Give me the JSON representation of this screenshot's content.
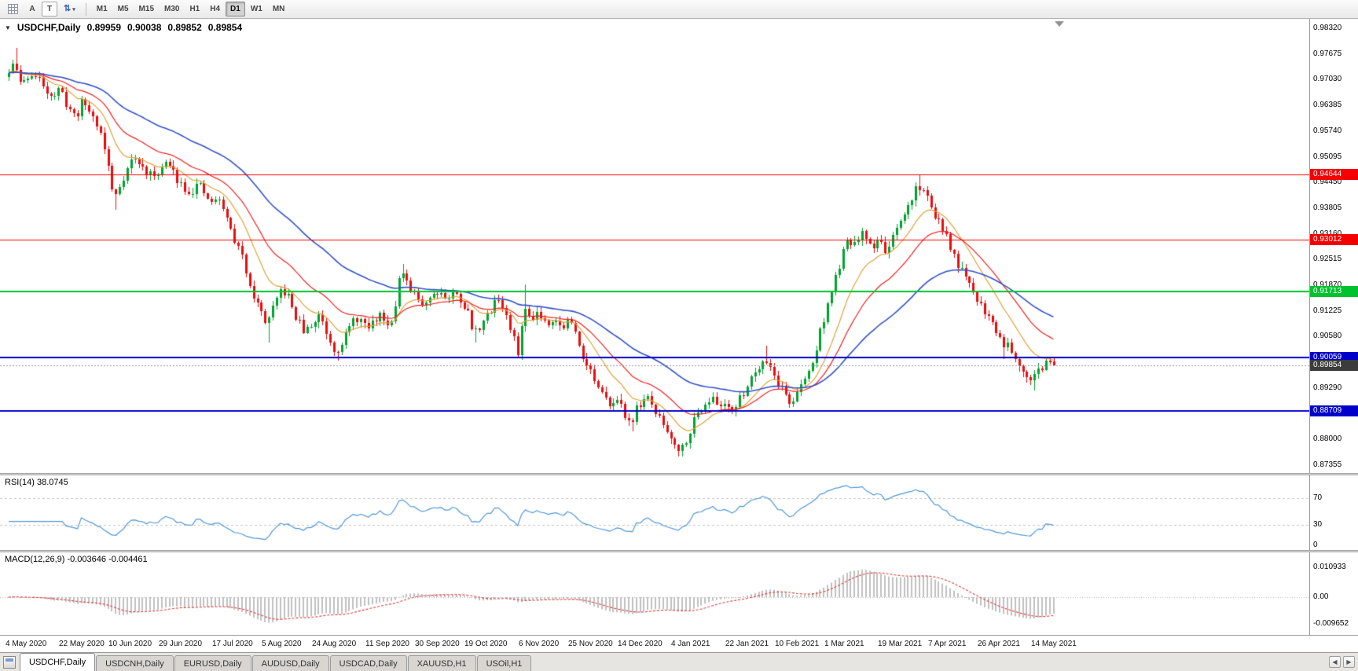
{
  "toolbar": {
    "tools": [
      {
        "name": "grid-tool"
      },
      {
        "name": "annotation-tool",
        "label": "A"
      },
      {
        "name": "text-tool",
        "label": "T"
      },
      {
        "name": "sort-arrows-tool"
      }
    ],
    "timeframes": [
      "M1",
      "M5",
      "M15",
      "M30",
      "H1",
      "H4",
      "D1",
      "W1",
      "MN"
    ],
    "active_timeframe": "D1"
  },
  "chart": {
    "title": "USDCHF,Daily",
    "open": "0.89959",
    "high": "0.90038",
    "low": "0.89852",
    "close": "0.89854",
    "price_axis_labels": [
      "0.98320",
      "0.97675",
      "0.97030",
      "0.96385",
      "0.95740",
      "0.95095",
      "0.94450",
      "0.93805",
      "0.93160",
      "0.92515",
      "0.91870",
      "0.91225",
      "0.90580",
      "0.89935",
      "0.89290",
      "0.88645",
      "0.88000",
      "0.87355"
    ],
    "levels": [
      {
        "price": 0.94644,
        "label": "0.94644",
        "color": "#f40000",
        "width": 1
      },
      {
        "price": 0.93012,
        "label": "0.93012",
        "color": "#f40000",
        "width": 1
      },
      {
        "price": 0.91713,
        "label": "0.91713",
        "color": "#00c22e",
        "width": 2
      },
      {
        "price": 0.90059,
        "label": "0.90059",
        "color": "#0100ca",
        "width": 2
      },
      {
        "price": 0.88709,
        "label": "0.88709",
        "color": "#0100ca",
        "width": 2
      }
    ],
    "current_price": {
      "price": 0.89854,
      "label": "0.89854",
      "badge_color": "#3c3c3c"
    }
  },
  "rsi_panel": {
    "label": "RSI(14) 38.0745",
    "period": 14,
    "current": 38.0745,
    "axis": [
      {
        "value": 70,
        "label": "70",
        "dashed": true
      },
      {
        "value": 30,
        "label": "30",
        "dashed": true
      },
      {
        "value": 0,
        "label": "0",
        "dashed": false
      }
    ]
  },
  "macd_panel": {
    "label": "MACD(12,26,9) -0.003646 -0.004461",
    "fast": 12,
    "slow": 26,
    "signal_period": 9,
    "current_main": -0.003646,
    "current_signal": -0.004461,
    "axis": [
      {
        "value": 0.010933,
        "label": "0.010933"
      },
      {
        "value": 0,
        "label": "0.00"
      },
      {
        "value": -0.009652,
        "label": "-0.009652"
      }
    ]
  },
  "tabs": {
    "items": [
      "USDCHF,Daily",
      "USDCNH,Daily",
      "EURUSD,Daily",
      "AUDUSD,Daily",
      "USDCAD,Daily",
      "XAUUSD,H1",
      "USOil,H1"
    ],
    "active": "USDCHF,Daily"
  },
  "colors": {
    "bull": "#00a32e",
    "bear": "#ea0c0c",
    "rsi_line": "#4f97d7",
    "rsi_level": "#c4c4c4",
    "macd_hist": "#c0c0c0",
    "macd_signal": "#e23a3a",
    "current_line": "#9a9a9a"
  },
  "chart_data": {
    "type": "candlestick",
    "symbol": "USDCHF",
    "period": "Daily",
    "price_axis": {
      "top": 0.9832,
      "bottom": 0.87355,
      "step": 0.00645
    },
    "days": 274,
    "close_waypoints": [
      [
        0,
        0.971
      ],
      [
        2,
        0.9742
      ],
      [
        4,
        0.9688
      ],
      [
        6,
        0.972
      ],
      [
        9,
        0.9698
      ],
      [
        12,
        0.9662
      ],
      [
        14,
        0.9676
      ],
      [
        16,
        0.9638
      ],
      [
        18,
        0.9608
      ],
      [
        20,
        0.9652
      ],
      [
        22,
        0.9618
      ],
      [
        24,
        0.9588
      ],
      [
        26,
        0.9518
      ],
      [
        28,
        0.9402
      ],
      [
        30,
        0.9448
      ],
      [
        33,
        0.9508
      ],
      [
        36,
        0.9478
      ],
      [
        38,
        0.9458
      ],
      [
        40,
        0.9478
      ],
      [
        42,
        0.9495
      ],
      [
        44,
        0.9462
      ],
      [
        46,
        0.944
      ],
      [
        48,
        0.942
      ],
      [
        50,
        0.9442
      ],
      [
        52,
        0.9408
      ],
      [
        54,
        0.9395
      ],
      [
        56,
        0.9402
      ],
      [
        58,
        0.934
      ],
      [
        60,
        0.9292
      ],
      [
        62,
        0.9248
      ],
      [
        64,
        0.9178
      ],
      [
        66,
        0.9128
      ],
      [
        68,
        0.9092
      ],
      [
        70,
        0.9132
      ],
      [
        72,
        0.918
      ],
      [
        74,
        0.9148
      ],
      [
        76,
        0.9098
      ],
      [
        78,
        0.9068
      ],
      [
        80,
        0.9088
      ],
      [
        82,
        0.9118
      ],
      [
        84,
        0.9058
      ],
      [
        86,
        0.9022
      ],
      [
        88,
        0.9052
      ],
      [
        90,
        0.9088
      ],
      [
        92,
        0.9108
      ],
      [
        94,
        0.9076
      ],
      [
        96,
        0.9096
      ],
      [
        98,
        0.9118
      ],
      [
        100,
        0.9082
      ],
      [
        102,
        0.9162
      ],
      [
        103,
        0.9226
      ],
      [
        105,
        0.9178
      ],
      [
        107,
        0.9158
      ],
      [
        109,
        0.9142
      ],
      [
        111,
        0.9162
      ],
      [
        113,
        0.9178
      ],
      [
        115,
        0.9152
      ],
      [
        117,
        0.9168
      ],
      [
        119,
        0.9148
      ],
      [
        121,
        0.9108
      ],
      [
        122,
        0.9062
      ],
      [
        124,
        0.9092
      ],
      [
        126,
        0.9112
      ],
      [
        128,
        0.9162
      ],
      [
        130,
        0.9128
      ],
      [
        132,
        0.9062
      ],
      [
        134,
        0.9012
      ],
      [
        135,
        0.9128
      ],
      [
        137,
        0.9108
      ],
      [
        139,
        0.9122
      ],
      [
        141,
        0.9092
      ],
      [
        143,
        0.9108
      ],
      [
        145,
        0.9078
      ],
      [
        147,
        0.9102
      ],
      [
        149,
        0.9058
      ],
      [
        151,
        0.9002
      ],
      [
        153,
        0.8962
      ],
      [
        155,
        0.8916
      ],
      [
        157,
        0.8892
      ],
      [
        159,
        0.8906
      ],
      [
        161,
        0.8872
      ],
      [
        163,
        0.8842
      ],
      [
        165,
        0.8882
      ],
      [
        167,
        0.8908
      ],
      [
        169,
        0.8878
      ],
      [
        171,
        0.8846
      ],
      [
        173,
        0.8815
      ],
      [
        175,
        0.879
      ],
      [
        176,
        0.8768
      ],
      [
        178,
        0.8812
      ],
      [
        180,
        0.8856
      ],
      [
        182,
        0.8886
      ],
      [
        184,
        0.8906
      ],
      [
        186,
        0.8882
      ],
      [
        188,
        0.8896
      ],
      [
        190,
        0.8872
      ],
      [
        192,
        0.8906
      ],
      [
        194,
        0.8948
      ],
      [
        196,
        0.8976
      ],
      [
        198,
        0.9008
      ],
      [
        200,
        0.8976
      ],
      [
        201,
        0.8952
      ],
      [
        203,
        0.8922
      ],
      [
        205,
        0.8888
      ],
      [
        207,
        0.8922
      ],
      [
        209,
        0.8958
      ],
      [
        211,
        0.9002
      ],
      [
        213,
        0.9088
      ],
      [
        214,
        0.9118
      ],
      [
        216,
        0.9182
      ],
      [
        218,
        0.9252
      ],
      [
        220,
        0.9298
      ],
      [
        222,
        0.9288
      ],
      [
        224,
        0.9318
      ],
      [
        226,
        0.9282
      ],
      [
        228,
        0.9302
      ],
      [
        230,
        0.9272
      ],
      [
        232,
        0.9308
      ],
      [
        234,
        0.9348
      ],
      [
        236,
        0.9392
      ],
      [
        238,
        0.944
      ],
      [
        240,
        0.9418
      ],
      [
        241,
        0.9398
      ],
      [
        243,
        0.9358
      ],
      [
        245,
        0.9318
      ],
      [
        247,
        0.9272
      ],
      [
        249,
        0.9232
      ],
      [
        251,
        0.9192
      ],
      [
        253,
        0.9162
      ],
      [
        254,
        0.9148
      ],
      [
        256,
        0.9118
      ],
      [
        258,
        0.9088
      ],
      [
        260,
        0.9046
      ],
      [
        262,
        0.9038
      ],
      [
        264,
        0.9
      ],
      [
        266,
        0.8972
      ],
      [
        268,
        0.8952
      ],
      [
        270,
        0.8976
      ],
      [
        272,
        0.8992
      ],
      [
        273,
        0.8986
      ]
    ],
    "wick_overrides": [
      {
        "i": 2,
        "h": 0.9782
      },
      {
        "i": 28,
        "l": 0.9376
      },
      {
        "i": 68,
        "l": 0.9044
      },
      {
        "i": 86,
        "l": 0.8998
      },
      {
        "i": 103,
        "h": 0.924
      },
      {
        "i": 122,
        "l": 0.9044
      },
      {
        "i": 135,
        "h": 0.919
      },
      {
        "i": 163,
        "l": 0.882
      },
      {
        "i": 176,
        "l": 0.8757
      },
      {
        "i": 198,
        "h": 0.9036
      },
      {
        "i": 238,
        "h": 0.94644
      },
      {
        "i": 260,
        "l": 0.9002
      },
      {
        "i": 268,
        "l": 0.8922
      }
    ],
    "last_candle": {
      "o": 0.89959,
      "h": 0.90038,
      "l": 0.89852,
      "c": 0.89854
    },
    "moving_averages": [
      {
        "name": "MA fast",
        "method": "ema",
        "period": 12,
        "color": "#e2a23b"
      },
      {
        "name": "MA mid",
        "method": "ema",
        "period": 24,
        "color": "#f22020"
      },
      {
        "name": "MA slow",
        "method": "ema",
        "period": 52,
        "color": "#3152c8"
      }
    ],
    "date_ticks": [
      [
        0,
        "4 May 2020"
      ],
      [
        14,
        "22 May 2020"
      ],
      [
        27,
        "10 Jun 2020"
      ],
      [
        40,
        "29 Jun 2020"
      ],
      [
        54,
        "17 Jul 2020"
      ],
      [
        67,
        "5 Aug 2020"
      ],
      [
        80,
        "24 Aug 2020"
      ],
      [
        94,
        "11 Sep 2020"
      ],
      [
        107,
        "30 Sep 2020"
      ],
      [
        120,
        "19 Oct 2020"
      ],
      [
        134,
        "6 Nov 2020"
      ],
      [
        147,
        "25 Nov 2020"
      ],
      [
        160,
        "14 Dec 2020"
      ],
      [
        174,
        "4 Jan 2021"
      ],
      [
        188,
        "22 Jan 2021"
      ],
      [
        201,
        "10 Feb 2021"
      ],
      [
        214,
        "1 Mar 2021"
      ],
      [
        228,
        "19 Mar 2021"
      ],
      [
        241,
        "7 Apr 2021"
      ],
      [
        254,
        "26 Apr 2021"
      ],
      [
        268,
        "14 May 2021"
      ]
    ]
  }
}
